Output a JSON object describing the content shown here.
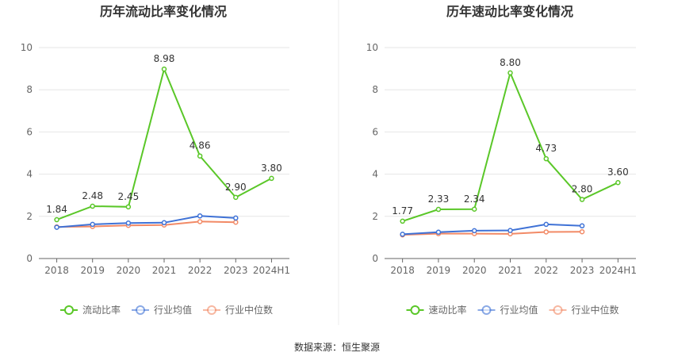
{
  "source_label": "数据来源：恒生聚源",
  "chart_data": [
    {
      "type": "line",
      "title": "历年流动比率变化情况",
      "categories": [
        "2018",
        "2019",
        "2020",
        "2021",
        "2022",
        "2023",
        "2024H1"
      ],
      "ylim": [
        0,
        10
      ],
      "yticks": [
        0,
        2,
        4,
        6,
        8,
        10
      ],
      "grid": true,
      "legend_position": "bottom",
      "series": [
        {
          "name": "流动比率",
          "color": "#5ac728",
          "values": [
            1.84,
            2.48,
            2.45,
            8.98,
            4.86,
            2.9,
            3.8
          ],
          "labels": [
            "1.84",
            "2.48",
            "2.45",
            "8.98",
            "4.86",
            "2.90",
            "3.80"
          ]
        },
        {
          "name": "行业均值",
          "color": "#3f72d6",
          "values": [
            1.48,
            1.62,
            1.68,
            1.7,
            2.02,
            1.92,
            null
          ]
        },
        {
          "name": "行业中位数",
          "color": "#f28a66",
          "values": [
            1.5,
            1.52,
            1.57,
            1.59,
            1.75,
            1.72,
            null
          ]
        }
      ]
    },
    {
      "type": "line",
      "title": "历年速动比率变化情况",
      "categories": [
        "2018",
        "2019",
        "2020",
        "2021",
        "2022",
        "2023",
        "2024H1"
      ],
      "ylim": [
        0,
        10
      ],
      "yticks": [
        0,
        2,
        4,
        6,
        8,
        10
      ],
      "grid": true,
      "legend_position": "bottom",
      "series": [
        {
          "name": "速动比率",
          "color": "#5ac728",
          "values": [
            1.77,
            2.33,
            2.34,
            8.8,
            4.73,
            2.8,
            3.6
          ],
          "labels": [
            "1.77",
            "2.33",
            "2.34",
            "8.80",
            "4.73",
            "2.80",
            "3.60"
          ]
        },
        {
          "name": "行业均值",
          "color": "#3f72d6",
          "values": [
            1.15,
            1.25,
            1.32,
            1.33,
            1.62,
            1.55,
            null
          ]
        },
        {
          "name": "行业中位数",
          "color": "#f28a66",
          "values": [
            1.12,
            1.18,
            1.18,
            1.17,
            1.26,
            1.27,
            null
          ]
        }
      ]
    }
  ]
}
